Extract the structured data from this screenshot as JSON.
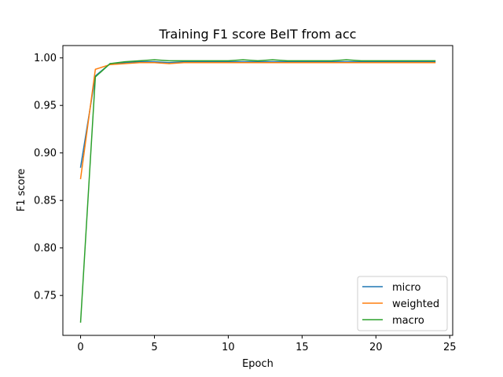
{
  "chart_data": {
    "type": "line",
    "title": "Training F1 score BeIT from acc",
    "xlabel": "Epoch",
    "ylabel": "F1 score",
    "xlim": [
      -1.2,
      25.2
    ],
    "ylim": [
      0.708,
      1.013
    ],
    "xticks": [
      0,
      5,
      10,
      15,
      20,
      25
    ],
    "xtick_labels": [
      "0",
      "5",
      "10",
      "15",
      "20",
      "25"
    ],
    "yticks": [
      0.75,
      0.8,
      0.85,
      0.9,
      0.95,
      1.0
    ],
    "ytick_labels": [
      "0.75",
      "0.80",
      "0.85",
      "0.90",
      "0.95",
      "1.00"
    ],
    "grid": false,
    "legend_position": "lower-right",
    "x": [
      0,
      1,
      2,
      3,
      4,
      5,
      6,
      7,
      8,
      9,
      10,
      11,
      12,
      13,
      14,
      15,
      16,
      17,
      18,
      19,
      20,
      21,
      22,
      23,
      24
    ],
    "series": [
      {
        "name": "micro",
        "color": "#1f77b4",
        "values": [
          0.885,
          0.981,
          0.994,
          0.995,
          0.996,
          0.996,
          0.995,
          0.996,
          0.996,
          0.996,
          0.996,
          0.996,
          0.996,
          0.996,
          0.996,
          0.996,
          0.996,
          0.996,
          0.996,
          0.996,
          0.996,
          0.996,
          0.996,
          0.996,
          0.996
        ]
      },
      {
        "name": "weighted",
        "color": "#ff7f0e",
        "values": [
          0.873,
          0.988,
          0.993,
          0.994,
          0.995,
          0.995,
          0.994,
          0.995,
          0.995,
          0.995,
          0.995,
          0.995,
          0.995,
          0.995,
          0.995,
          0.995,
          0.995,
          0.995,
          0.995,
          0.995,
          0.995,
          0.995,
          0.995,
          0.995,
          0.995
        ]
      },
      {
        "name": "macro",
        "color": "#2ca02c",
        "values": [
          0.722,
          0.98,
          0.994,
          0.996,
          0.997,
          0.998,
          0.997,
          0.997,
          0.997,
          0.997,
          0.997,
          0.998,
          0.997,
          0.998,
          0.997,
          0.997,
          0.997,
          0.997,
          0.998,
          0.997,
          0.997,
          0.997,
          0.997,
          0.997,
          0.997
        ]
      }
    ]
  }
}
